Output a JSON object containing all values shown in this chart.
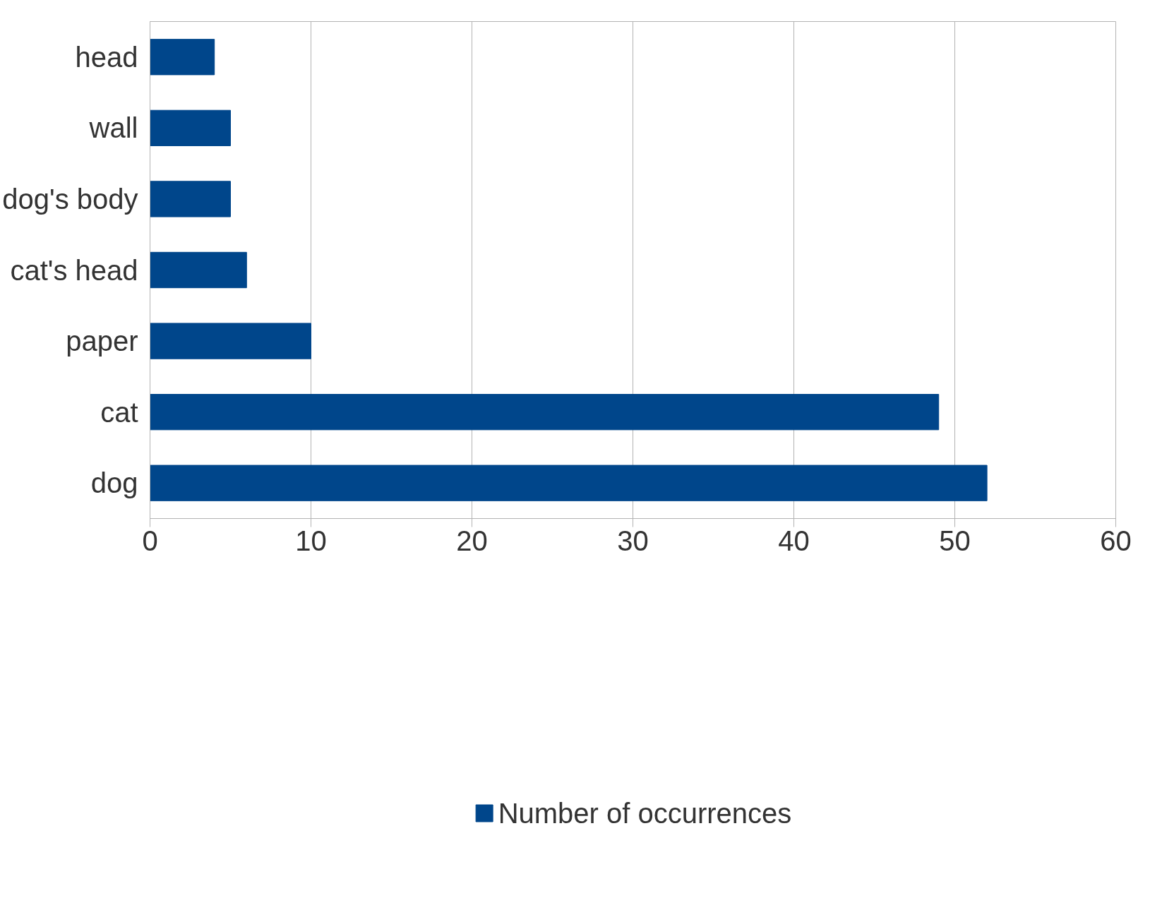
{
  "chart_data": {
    "type": "bar",
    "orientation": "horizontal",
    "categories": [
      "head",
      "wall",
      "dog's body",
      "cat's head",
      "paper",
      "cat",
      "dog"
    ],
    "series": [
      {
        "name": "Number of occurrences",
        "color": "#00468b",
        "values": [
          4,
          5,
          5,
          6,
          10,
          49,
          52
        ]
      }
    ],
    "xlim": [
      0,
      60
    ],
    "xticks": [
      0,
      10,
      20,
      30,
      40,
      50,
      60
    ],
    "grid": "x",
    "legend": "bottom"
  }
}
